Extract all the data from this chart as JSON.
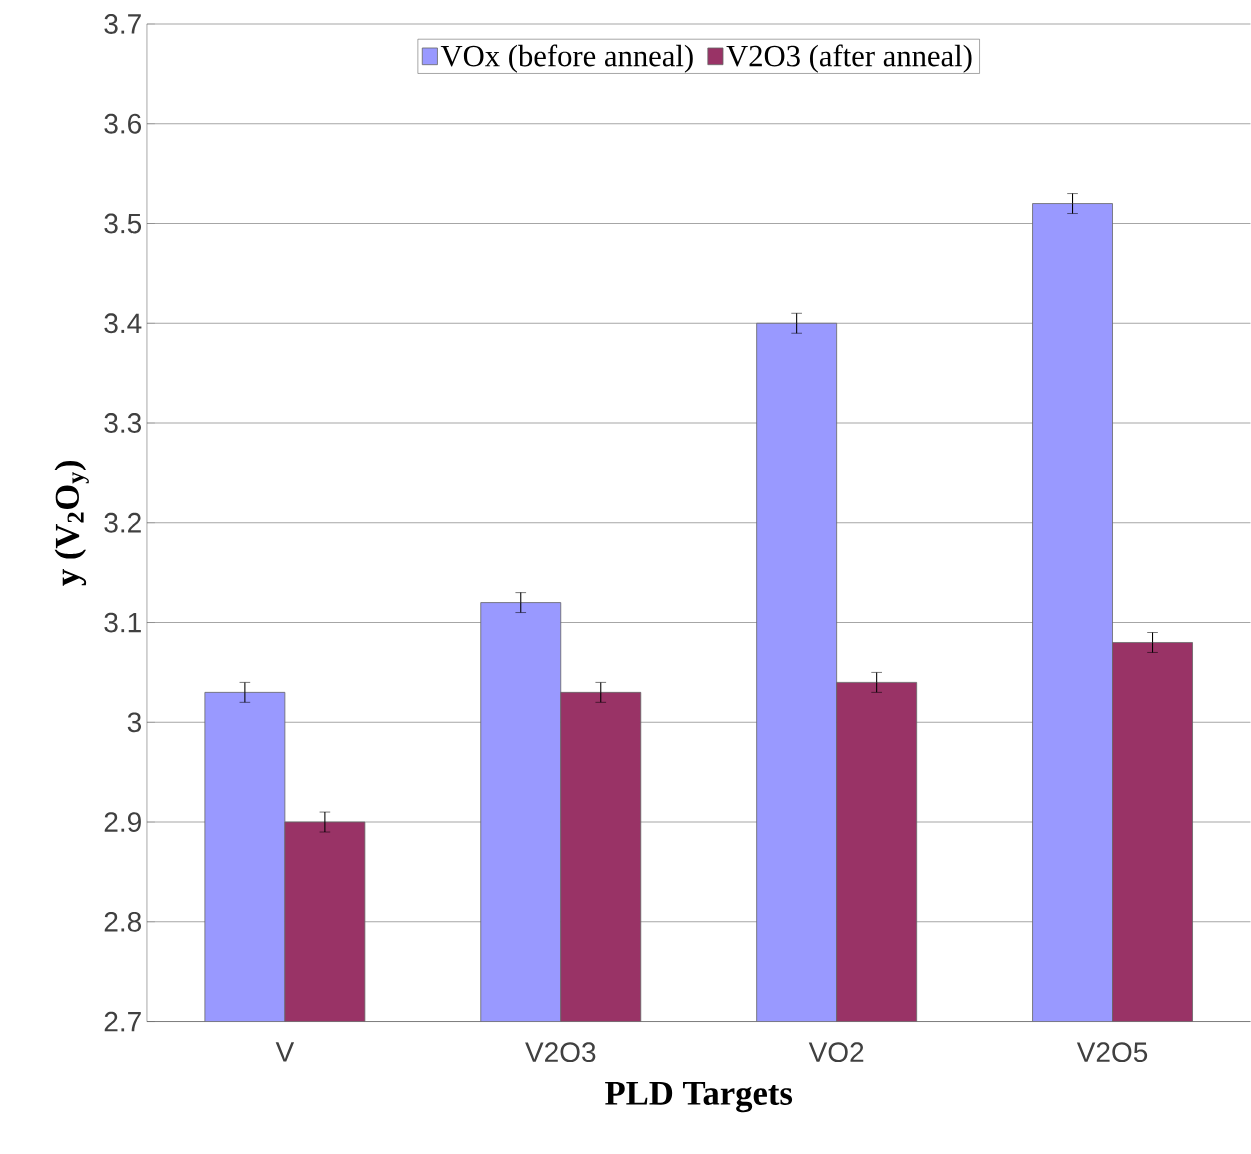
{
  "chart_data": {
    "type": "bar",
    "xlabel": "PLD Targets",
    "ylabel": "y (V$_{2}$O$_{y}$)",
    "categories": [
      "V",
      "V2O3",
      "VO2",
      "V2O5"
    ],
    "series": [
      {
        "name": "VOx (before anneal)",
        "color": "#9999ff",
        "values": [
          3.03,
          3.12,
          3.4,
          3.52
        ],
        "errors": [
          0.01,
          0.01,
          0.01,
          0.01
        ]
      },
      {
        "name": "V2O3 (after anneal)",
        "color": "#993366",
        "values": [
          2.9,
          3.03,
          3.04,
          3.08
        ],
        "errors": [
          0.01,
          0.01,
          0.01,
          0.01
        ]
      }
    ],
    "ylim": [
      2.7,
      3.7
    ],
    "yticks": [
      2.7,
      2.8,
      2.9,
      3,
      3.1,
      3.2,
      3.3,
      3.4,
      3.5,
      3.6,
      3.7
    ],
    "grid": "y",
    "legend": "top"
  }
}
